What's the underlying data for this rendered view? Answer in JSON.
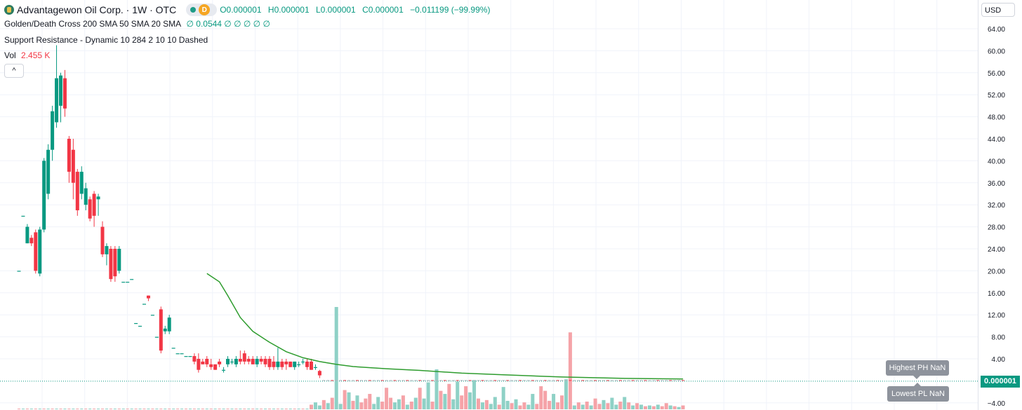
{
  "header": {
    "title": "Advantagewon Oil Corp. · 1W · OTC",
    "badge_letter": "D",
    "ohlc": {
      "o": "O0.000001",
      "h": "H0.000001",
      "l": "L0.000001",
      "c": "C0.000001",
      "change": "−0.011199 (−99.99%)"
    }
  },
  "indicators": {
    "golden_death": {
      "label": "Golden/Death Cross 200 SMA 50 SMA 20 SMA",
      "values": "∅ 0.0544 ∅ ∅ ∅ ∅ ∅",
      "value_color": "#089981"
    },
    "support_resistance": {
      "label": "Support Resistance - Dynamic 10 284 2 10 10 Dashed"
    },
    "volume": {
      "label": "Vol",
      "value": "2.455 K"
    }
  },
  "controls": {
    "collapse": "^",
    "currency": "USD"
  },
  "price_label": "0.000001",
  "tooltips": {
    "highest": "Highest PH NaN",
    "lowest": "Lowest PL NaN"
  },
  "colors": {
    "up": "#089981",
    "down": "#f23645",
    "sma": "#2e9c2e",
    "vol_up": "#8fd1c6",
    "vol_down": "#f5a3a8"
  },
  "chart_data": {
    "type": "candlestick",
    "y_ticks": [
      "64.00",
      "60.00",
      "56.00",
      "52.00",
      "48.00",
      "44.00",
      "40.00",
      "36.00",
      "32.00",
      "28.00",
      "24.00",
      "20.00",
      "16.00",
      "12.00",
      "8.00",
      "4.00",
      "−4.00"
    ],
    "ylim": [
      -4,
      64
    ],
    "candles": [
      {
        "o": 20.0,
        "h": 20.0,
        "l": 20.0,
        "c": 20.0
      },
      {
        "o": 30.0,
        "h": 30.0,
        "l": 30.0,
        "c": 30.0
      },
      {
        "o": 25.0,
        "h": 28.5,
        "l": 25.0,
        "c": 28.0
      },
      {
        "o": 26.0,
        "h": 26.5,
        "l": 24.5,
        "c": 25.0
      },
      {
        "o": 27.0,
        "h": 27.5,
        "l": 19.5,
        "c": 20.0
      },
      {
        "o": 19.5,
        "h": 28.0,
        "l": 19.0,
        "c": 27.5
      },
      {
        "o": 27.5,
        "h": 40.5,
        "l": 27.0,
        "c": 40.0
      },
      {
        "o": 34.0,
        "h": 43.0,
        "l": 33.0,
        "c": 42.0
      },
      {
        "o": 42.0,
        "h": 50.0,
        "l": 40.0,
        "c": 49.0
      },
      {
        "o": 47.0,
        "h": 61.0,
        "l": 46.0,
        "c": 55.0
      },
      {
        "o": 50.0,
        "h": 56.0,
        "l": 47.0,
        "c": 55.5
      },
      {
        "o": 55.0,
        "h": 56.5,
        "l": 48.0,
        "c": 49.5
      },
      {
        "o": 44.0,
        "h": 44.5,
        "l": 36.0,
        "c": 38.0
      },
      {
        "o": 42.0,
        "h": 44.0,
        "l": 33.0,
        "c": 36.0
      },
      {
        "o": 38.0,
        "h": 38.5,
        "l": 30.0,
        "c": 31.0
      },
      {
        "o": 34.0,
        "h": 39.0,
        "l": 33.0,
        "c": 38.0
      },
      {
        "o": 32.0,
        "h": 36.0,
        "l": 31.0,
        "c": 35.0
      },
      {
        "o": 33.0,
        "h": 33.5,
        "l": 29.0,
        "c": 29.5
      },
      {
        "o": 34.0,
        "h": 34.5,
        "l": 28.0,
        "c": 30.0
      },
      {
        "o": 33.0,
        "h": 34.0,
        "l": 30.0,
        "c": 33.5
      },
      {
        "o": 28.0,
        "h": 29.0,
        "l": 22.5,
        "c": 23.0
      },
      {
        "o": 23.0,
        "h": 25.0,
        "l": 21.0,
        "c": 24.5
      },
      {
        "o": 24.0,
        "h": 24.5,
        "l": 18.0,
        "c": 18.5
      },
      {
        "o": 24.0,
        "h": 24.5,
        "l": 18.0,
        "c": 19.0
      },
      {
        "o": 20.0,
        "h": 24.5,
        "l": 19.5,
        "c": 24.0
      },
      {
        "o": 18.0,
        "h": 18.0,
        "l": 18.0,
        "c": 18.0
      },
      {
        "o": 18.0,
        "h": 18.0,
        "l": 18.0,
        "c": 18.0
      },
      {
        "o": 18.5,
        "h": 18.5,
        "l": 18.5,
        "c": 18.5
      },
      {
        "o": 10.5,
        "h": 10.5,
        "l": 10.5,
        "c": 10.5
      },
      {
        "o": 10.0,
        "h": 10.0,
        "l": 10.0,
        "c": 10.0
      },
      {
        "o": 14.0,
        "h": 14.0,
        "l": 14.0,
        "c": 14.0
      },
      {
        "o": 15.5,
        "h": 15.5,
        "l": 14.5,
        "c": 15.0
      },
      {
        "o": 12.0,
        "h": 12.0,
        "l": 12.0,
        "c": 12.0
      },
      {
        "o": 8.0,
        "h": 8.0,
        "l": 8.0,
        "c": 8.0
      },
      {
        "o": 13.0,
        "h": 13.5,
        "l": 5.0,
        "c": 5.5
      },
      {
        "o": 9.0,
        "h": 10.0,
        "l": 8.5,
        "c": 9.5
      },
      {
        "o": 9.0,
        "h": 12.0,
        "l": 8.5,
        "c": 11.5
      },
      {
        "o": 6.0,
        "h": 6.0,
        "l": 6.0,
        "c": 6.0
      },
      {
        "o": 5.0,
        "h": 5.0,
        "l": 5.0,
        "c": 5.0
      },
      {
        "o": 5.0,
        "h": 5.0,
        "l": 5.0,
        "c": 5.0
      },
      {
        "o": 4.5,
        "h": 4.5,
        "l": 4.5,
        "c": 4.5
      },
      {
        "o": 4.5,
        "h": 4.5,
        "l": 4.5,
        "c": 4.5
      },
      {
        "o": 4.5,
        "h": 5.0,
        "l": 3.0,
        "c": 3.5
      },
      {
        "o": 4.0,
        "h": 5.0,
        "l": 1.5,
        "c": 2.0
      },
      {
        "o": 3.5,
        "h": 4.0,
        "l": 3.0,
        "c": 3.0
      },
      {
        "o": 4.0,
        "h": 4.5,
        "l": 2.5,
        "c": 3.0
      },
      {
        "o": 3.0,
        "h": 4.0,
        "l": 2.0,
        "c": 2.5
      },
      {
        "o": 3.0,
        "h": 3.0,
        "l": 2.0,
        "c": 2.0
      },
      {
        "o": 3.5,
        "h": 4.0,
        "l": 2.5,
        "c": 3.0
      },
      {
        "o": 2.0,
        "h": 2.5,
        "l": 1.5,
        "c": 2.0
      },
      {
        "o": 3.0,
        "h": 4.5,
        "l": 2.5,
        "c": 4.0
      },
      {
        "o": 3.5,
        "h": 4.0,
        "l": 3.0,
        "c": 3.5
      },
      {
        "o": 3.0,
        "h": 4.5,
        "l": 2.5,
        "c": 4.0
      },
      {
        "o": 4.0,
        "h": 5.5,
        "l": 3.0,
        "c": 3.5
      },
      {
        "o": 5.0,
        "h": 5.5,
        "l": 3.0,
        "c": 3.5
      },
      {
        "o": 4.0,
        "h": 4.5,
        "l": 3.0,
        "c": 3.5
      },
      {
        "o": 4.0,
        "h": 4.5,
        "l": 3.0,
        "c": 3.0
      },
      {
        "o": 3.0,
        "h": 4.5,
        "l": 2.5,
        "c": 4.0
      },
      {
        "o": 4.0,
        "h": 4.5,
        "l": 3.0,
        "c": 3.5
      },
      {
        "o": 4.0,
        "h": 4.5,
        "l": 2.5,
        "c": 3.0
      },
      {
        "o": 4.0,
        "h": 4.5,
        "l": 2.0,
        "c": 2.5
      },
      {
        "o": 3.5,
        "h": 4.5,
        "l": 2.0,
        "c": 2.5
      },
      {
        "o": 2.5,
        "h": 6.0,
        "l": 2.0,
        "c": 3.5
      },
      {
        "o": 3.5,
        "h": 4.0,
        "l": 2.0,
        "c": 2.5
      },
      {
        "o": 3.5,
        "h": 4.0,
        "l": 2.0,
        "c": 3.0
      },
      {
        "o": 3.5,
        "h": 3.5,
        "l": 2.5,
        "c": 2.5
      },
      {
        "o": 2.5,
        "h": 3.5,
        "l": 2.0,
        "c": 3.5
      },
      {
        "o": 3.0,
        "h": 3.5,
        "l": 2.5,
        "c": 3.0
      },
      {
        "o": 3.5,
        "h": 4.0,
        "l": 3.0,
        "c": 3.5
      },
      {
        "o": 3.5,
        "h": 4.0,
        "l": 2.0,
        "c": 2.5
      },
      {
        "o": 3.5,
        "h": 4.0,
        "l": 2.0,
        "c": 2.0
      },
      {
        "o": 2.5,
        "h": 3.0,
        "l": 2.0,
        "c": 2.5
      },
      {
        "o": 1.8,
        "h": 2.0,
        "l": 0.5,
        "c": 1.0
      }
    ],
    "sma": [
      {
        "i": 45,
        "v": 19.5
      },
      {
        "i": 48,
        "v": 18.0
      },
      {
        "i": 50,
        "v": 15.5
      },
      {
        "i": 53,
        "v": 11.5
      },
      {
        "i": 56,
        "v": 9.0
      },
      {
        "i": 60,
        "v": 7.0
      },
      {
        "i": 64,
        "v": 5.3
      },
      {
        "i": 68,
        "v": 4.2
      },
      {
        "i": 72,
        "v": 3.5
      },
      {
        "i": 76,
        "v": 3.0
      },
      {
        "i": 80,
        "v": 2.6
      },
      {
        "i": 88,
        "v": 2.2
      },
      {
        "i": 96,
        "v": 1.9
      },
      {
        "i": 106,
        "v": 1.4
      },
      {
        "i": 116,
        "v": 1.1
      },
      {
        "i": 130,
        "v": 0.7
      },
      {
        "i": 145,
        "v": 0.45
      },
      {
        "i": 159,
        "v": 0.35
      }
    ],
    "volume_bars": [
      {
        "i": 70,
        "v": 0.6,
        "up": false
      },
      {
        "i": 71,
        "v": 0.9,
        "up": true
      },
      {
        "i": 72,
        "v": 0.5,
        "up": true
      },
      {
        "i": 73,
        "v": 1.2,
        "up": false
      },
      {
        "i": 74,
        "v": 0.8,
        "up": true
      },
      {
        "i": 75,
        "v": 1.5,
        "up": false
      },
      {
        "i": 76,
        "v": 13.3,
        "up": true
      },
      {
        "i": 77,
        "v": 0.7,
        "up": true
      },
      {
        "i": 78,
        "v": 2.5,
        "up": false
      },
      {
        "i": 79,
        "v": 2.2,
        "up": true
      },
      {
        "i": 80,
        "v": 1.1,
        "up": false
      },
      {
        "i": 81,
        "v": 1.8,
        "up": true
      },
      {
        "i": 82,
        "v": 0.9,
        "up": false
      },
      {
        "i": 83,
        "v": 1.4,
        "up": false
      },
      {
        "i": 84,
        "v": 2.0,
        "up": false
      },
      {
        "i": 85,
        "v": 0.7,
        "up": true
      },
      {
        "i": 86,
        "v": 1.6,
        "up": true
      },
      {
        "i": 87,
        "v": 1.0,
        "up": false
      },
      {
        "i": 88,
        "v": 2.8,
        "up": false
      },
      {
        "i": 89,
        "v": 1.5,
        "up": false
      },
      {
        "i": 90,
        "v": 0.9,
        "up": true
      },
      {
        "i": 91,
        "v": 1.3,
        "up": true
      },
      {
        "i": 92,
        "v": 1.8,
        "up": false
      },
      {
        "i": 93,
        "v": 0.6,
        "up": true
      },
      {
        "i": 94,
        "v": 1.0,
        "up": false
      },
      {
        "i": 95,
        "v": 1.5,
        "up": true
      },
      {
        "i": 96,
        "v": 2.8,
        "up": false
      },
      {
        "i": 97,
        "v": 1.4,
        "up": true
      },
      {
        "i": 98,
        "v": 3.5,
        "up": true
      },
      {
        "i": 99,
        "v": 1.0,
        "up": false
      },
      {
        "i": 100,
        "v": 5.2,
        "up": true
      },
      {
        "i": 101,
        "v": 2.4,
        "up": false
      },
      {
        "i": 102,
        "v": 2.0,
        "up": true
      },
      {
        "i": 103,
        "v": 3.3,
        "up": false
      },
      {
        "i": 104,
        "v": 1.3,
        "up": true
      },
      {
        "i": 105,
        "v": 3.6,
        "up": true
      },
      {
        "i": 106,
        "v": 1.8,
        "up": false
      },
      {
        "i": 107,
        "v": 3.0,
        "up": false
      },
      {
        "i": 108,
        "v": 2.2,
        "up": true
      },
      {
        "i": 109,
        "v": 3.8,
        "up": true
      },
      {
        "i": 110,
        "v": 1.4,
        "up": false
      },
      {
        "i": 111,
        "v": 0.9,
        "up": true
      },
      {
        "i": 112,
        "v": 1.2,
        "up": false
      },
      {
        "i": 113,
        "v": 0.7,
        "up": true
      },
      {
        "i": 114,
        "v": 1.6,
        "up": true
      },
      {
        "i": 115,
        "v": 0.6,
        "up": false
      },
      {
        "i": 116,
        "v": 2.9,
        "up": true
      },
      {
        "i": 117,
        "v": 1.1,
        "up": true
      },
      {
        "i": 118,
        "v": 0.8,
        "up": false
      },
      {
        "i": 119,
        "v": 1.3,
        "up": true
      },
      {
        "i": 120,
        "v": 0.5,
        "up": false
      },
      {
        "i": 121,
        "v": 0.9,
        "up": false
      },
      {
        "i": 122,
        "v": 0.6,
        "up": true
      },
      {
        "i": 123,
        "v": 2.0,
        "up": true
      },
      {
        "i": 124,
        "v": 0.7,
        "up": false
      },
      {
        "i": 125,
        "v": 3.0,
        "up": false
      },
      {
        "i": 126,
        "v": 2.4,
        "up": false
      },
      {
        "i": 127,
        "v": 1.1,
        "up": false
      },
      {
        "i": 128,
        "v": 2.0,
        "up": true
      },
      {
        "i": 129,
        "v": 0.9,
        "up": false
      },
      {
        "i": 130,
        "v": 1.8,
        "up": false
      },
      {
        "i": 131,
        "v": 3.9,
        "up": true
      },
      {
        "i": 132,
        "v": 10.0,
        "up": false
      },
      {
        "i": 133,
        "v": 0.5,
        "up": true
      },
      {
        "i": 134,
        "v": 0.9,
        "up": false
      },
      {
        "i": 135,
        "v": 0.6,
        "up": true
      },
      {
        "i": 136,
        "v": 1.0,
        "up": false
      },
      {
        "i": 137,
        "v": 0.5,
        "up": true
      },
      {
        "i": 138,
        "v": 1.4,
        "up": false
      },
      {
        "i": 139,
        "v": 0.7,
        "up": false
      },
      {
        "i": 140,
        "v": 1.2,
        "up": true
      },
      {
        "i": 141,
        "v": 0.8,
        "up": false
      },
      {
        "i": 142,
        "v": 1.5,
        "up": true
      },
      {
        "i": 143,
        "v": 0.6,
        "up": true
      },
      {
        "i": 144,
        "v": 1.0,
        "up": false
      },
      {
        "i": 145,
        "v": 1.6,
        "up": true
      },
      {
        "i": 146,
        "v": 0.9,
        "up": false
      },
      {
        "i": 147,
        "v": 0.5,
        "up": true
      },
      {
        "i": 148,
        "v": 0.8,
        "up": false
      },
      {
        "i": 149,
        "v": 0.6,
        "up": true
      },
      {
        "i": 150,
        "v": 0.4,
        "up": false
      },
      {
        "i": 151,
        "v": 0.5,
        "up": true
      },
      {
        "i": 152,
        "v": 0.4,
        "up": false
      },
      {
        "i": 153,
        "v": 0.6,
        "up": true
      },
      {
        "i": 154,
        "v": 0.4,
        "up": false
      },
      {
        "i": 155,
        "v": 0.8,
        "up": false
      },
      {
        "i": 156,
        "v": 0.5,
        "up": true
      },
      {
        "i": 157,
        "v": 0.4,
        "up": false
      },
      {
        "i": 158,
        "v": 0.3,
        "up": true
      },
      {
        "i": 159,
        "v": 0.5,
        "up": false
      }
    ],
    "small_volume_tail_count": 70,
    "last_price": 1e-06
  }
}
